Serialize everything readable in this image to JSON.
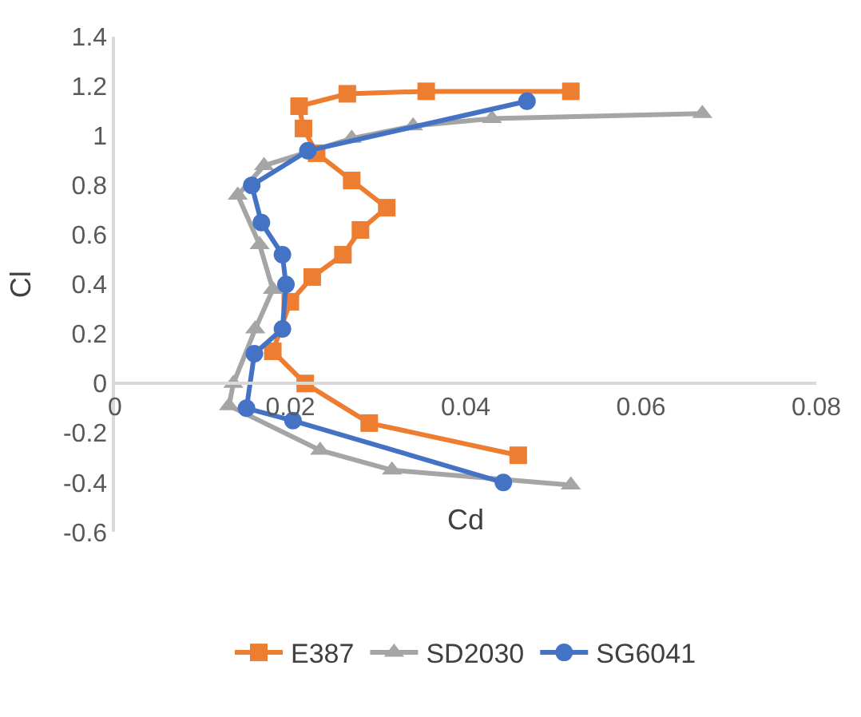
{
  "chart_data": {
    "type": "line",
    "xlabel": "Cd",
    "ylabel": "Cl",
    "xlim": [
      0,
      0.08
    ],
    "xticks": [
      0,
      0.02,
      0.04,
      0.06,
      0.08
    ],
    "ylim": [
      -0.6,
      1.4
    ],
    "yticks": [
      -0.6,
      -0.4,
      -0.2,
      0,
      0.2,
      0.4,
      0.6,
      0.8,
      1,
      1.2,
      1.4
    ],
    "legend": "bottom",
    "series": [
      {
        "name": "E387",
        "color": "#ed7d31",
        "marker": "square",
        "x": [
          0.046,
          0.029,
          0.0217,
          0.018,
          0.02,
          0.0225,
          0.026,
          0.028,
          0.031,
          0.027,
          0.023,
          0.0215,
          0.021,
          0.0265,
          0.0355,
          0.052
        ],
        "values": [
          -0.29,
          -0.16,
          0.0,
          0.13,
          0.33,
          0.43,
          0.52,
          0.62,
          0.71,
          0.82,
          0.93,
          1.03,
          1.12,
          1.17,
          1.18,
          1.18
        ]
      },
      {
        "name": "SD2030",
        "color": "#a5a5a5",
        "marker": "triangle",
        "x": [
          0.052,
          0.0316,
          0.0234,
          0.013,
          0.0135,
          0.016,
          0.018,
          0.0165,
          0.014,
          0.017,
          0.027,
          0.034,
          0.043,
          0.067
        ],
        "values": [
          -0.41,
          -0.35,
          -0.27,
          -0.09,
          0.0,
          0.22,
          0.38,
          0.56,
          0.76,
          0.88,
          0.99,
          1.04,
          1.07,
          1.09
        ]
      },
      {
        "name": "SG6041",
        "color": "#4472c4",
        "marker": "circle",
        "x": [
          0.0443,
          0.0203,
          0.015,
          0.0159,
          0.0191,
          0.0195,
          0.0191,
          0.0167,
          0.0156,
          0.022,
          0.047
        ],
        "values": [
          -0.4,
          -0.15,
          -0.1,
          0.12,
          0.22,
          0.4,
          0.52,
          0.65,
          0.8,
          0.94,
          1.14
        ]
      }
    ]
  }
}
